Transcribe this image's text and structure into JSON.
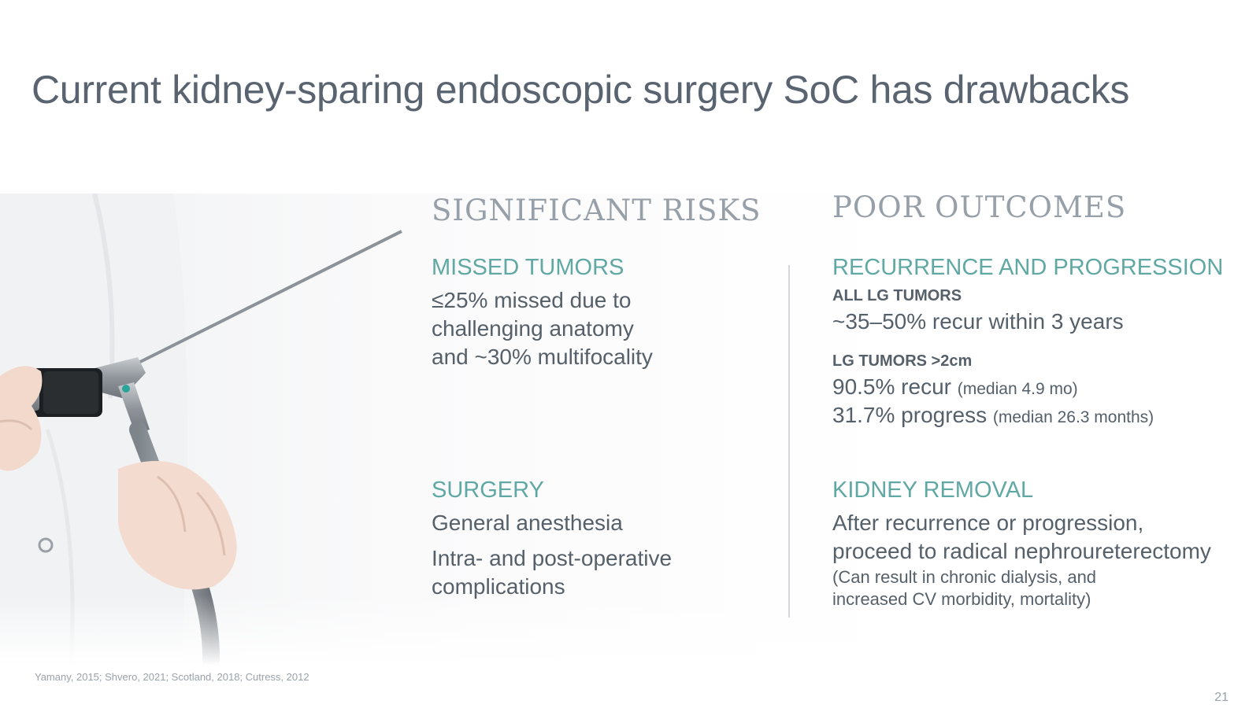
{
  "slide": {
    "title": "Current kidney-sparing endoscopic surgery SoC has drawbacks",
    "page_number": "21",
    "footer_refs": "Yamany, 2015; Shvero, 2021; Scotland, 2018; Cutress, 2012"
  },
  "left_column": {
    "heading": "SIGNIFICANT RISKS",
    "missed": {
      "heading": "MISSED TUMORS",
      "lines": [
        "≤25% missed due to",
        "challenging anatomy",
        "and ~30% multifocality"
      ]
    },
    "surgery": {
      "heading": "SURGERY",
      "line1": "General anesthesia",
      "line2a": "Intra- and post-operative",
      "line2b": "complications"
    }
  },
  "right_column": {
    "heading": "POOR OUTCOMES",
    "recurrence": {
      "heading": "RECURRENCE AND PROGRESSION",
      "all_lg_label": "ALL LG TUMORS",
      "all_lg_value": "~35–50% recur within 3 years",
      "lg2_label": "LG TUMORS >2cm",
      "recur_value": "90.5% recur",
      "recur_note": "(median 4.9 mo)",
      "progress_value": "31.7% progress",
      "progress_note": "(median 26.3 months)"
    },
    "removal": {
      "heading": "KIDNEY REMOVAL",
      "line1": "After recurrence or progression,",
      "line2": "proceed to radical nephroureterectomy",
      "note1": "(Can result in chronic dialysis, and",
      "note2": "increased CV morbidity, mortality)"
    }
  },
  "colors": {
    "title": "#5a6470",
    "accent_teal": "#5fa8a3",
    "column_heading": "#97a0a9",
    "body": "#55606a"
  }
}
